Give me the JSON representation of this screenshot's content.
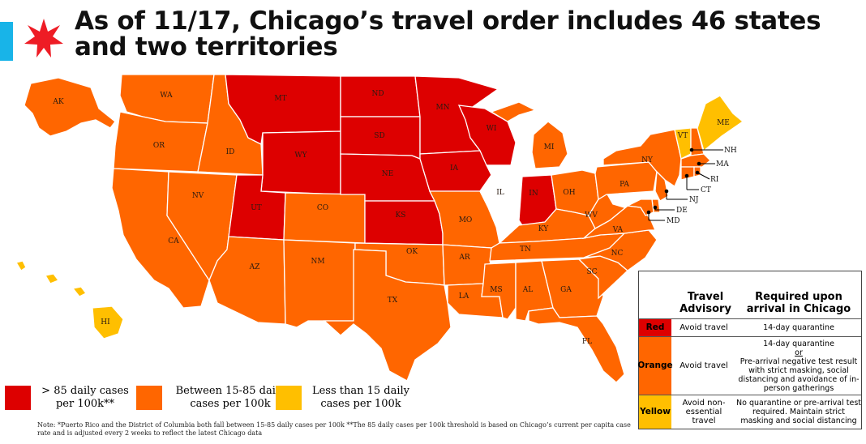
{
  "title": "As of 11/17, Chicago’s travel order includes 46 states and two territories",
  "colors": {
    "red": "#dd0000",
    "orange": "#ff6600",
    "yellow": "#ffbf00",
    "white": "#ffffff",
    "accent": "#18b4e8"
  },
  "states": {
    "AK": {
      "label": "AK",
      "tier": "orange"
    },
    "HI": {
      "label": "HI",
      "tier": "yellow"
    },
    "WA": {
      "label": "WA",
      "tier": "orange"
    },
    "OR": {
      "label": "OR",
      "tier": "orange"
    },
    "CA": {
      "label": "CA",
      "tier": "orange"
    },
    "NV": {
      "label": "NV",
      "tier": "orange"
    },
    "ID": {
      "label": "ID",
      "tier": "orange"
    },
    "MT": {
      "label": "MT",
      "tier": "red"
    },
    "WY": {
      "label": "WY",
      "tier": "red"
    },
    "UT": {
      "label": "UT",
      "tier": "red"
    },
    "AZ": {
      "label": "AZ",
      "tier": "orange"
    },
    "CO": {
      "label": "CO",
      "tier": "orange"
    },
    "NM": {
      "label": "NM",
      "tier": "orange"
    },
    "ND": {
      "label": "ND",
      "tier": "red"
    },
    "SD": {
      "label": "SD",
      "tier": "red"
    },
    "NE": {
      "label": "NE",
      "tier": "red"
    },
    "KS": {
      "label": "KS",
      "tier": "red"
    },
    "OK": {
      "label": "OK",
      "tier": "orange"
    },
    "TX": {
      "label": "TX",
      "tier": "orange"
    },
    "MN": {
      "label": "MN",
      "tier": "red"
    },
    "IA": {
      "label": "IA",
      "tier": "red"
    },
    "MO": {
      "label": "MO",
      "tier": "orange"
    },
    "AR": {
      "label": "AR",
      "tier": "orange"
    },
    "LA": {
      "label": "LA",
      "tier": "orange"
    },
    "WI": {
      "label": "WI",
      "tier": "red"
    },
    "IL": {
      "label": "IL",
      "tier": "white"
    },
    "MI": {
      "label": "MI",
      "tier": "orange"
    },
    "IN": {
      "label": "IN",
      "tier": "red"
    },
    "OH": {
      "label": "OH",
      "tier": "orange"
    },
    "KY": {
      "label": "KY",
      "tier": "orange"
    },
    "TN": {
      "label": "TN",
      "tier": "orange"
    },
    "MS": {
      "label": "MS",
      "tier": "orange"
    },
    "AL": {
      "label": "AL",
      "tier": "orange"
    },
    "GA": {
      "label": "GA",
      "tier": "orange"
    },
    "FL": {
      "label": "FL",
      "tier": "orange"
    },
    "SC": {
      "label": "SC",
      "tier": "orange"
    },
    "NC": {
      "label": "NC",
      "tier": "orange"
    },
    "VA": {
      "label": "VA",
      "tier": "orange"
    },
    "WV": {
      "label": "WV",
      "tier": "orange"
    },
    "PA": {
      "label": "PA",
      "tier": "orange"
    },
    "NY": {
      "label": "NY",
      "tier": "orange"
    },
    "VT": {
      "label": "VT",
      "tier": "yellow"
    },
    "ME": {
      "label": "ME",
      "tier": "yellow"
    },
    "NH": {
      "label": "NH",
      "tier": "orange"
    },
    "MA": {
      "label": "MA",
      "tier": "orange"
    },
    "RI": {
      "label": "RI",
      "tier": "orange"
    },
    "CT": {
      "label": "CT",
      "tier": "orange"
    },
    "NJ": {
      "label": "NJ",
      "tier": "orange"
    },
    "DE": {
      "label": "DE",
      "tier": "orange"
    },
    "MD": {
      "label": "MD",
      "tier": "orange"
    }
  },
  "legend": {
    "red": "> 85 daily cases per 100k**",
    "orange": "Between 15-85 daily cases per 100k",
    "yellow": "Less than 15 daily cases per 100k"
  },
  "table": {
    "header_advisory": "Travel Advisory",
    "header_required": "Required upon arrival in Chicago",
    "rows": [
      {
        "tier": "Red",
        "advisory": "Avoid travel",
        "required": "14-day quarantine"
      },
      {
        "tier": "Orange",
        "advisory": "Avoid travel",
        "required_top": "14-day quarantine",
        "required_or": "or",
        "required_bottom": "Pre-arrival negative test result with strict masking, social distancing and avoidance of in-person gatherings"
      },
      {
        "tier": "Yellow",
        "advisory": "Avoid non-essential travel",
        "required": "No quarantine or pre-arrival test required. Maintain strict masking and social distancing"
      }
    ]
  },
  "note": "Note: *Puerto Rico and the District of Columbia both fall between 15-85 daily cases per 100k **The 85 daily cases per 100k threshold is based on Chicago’s current per capita case rate and is adjusted every 2 weeks to reflect the latest Chicago data"
}
